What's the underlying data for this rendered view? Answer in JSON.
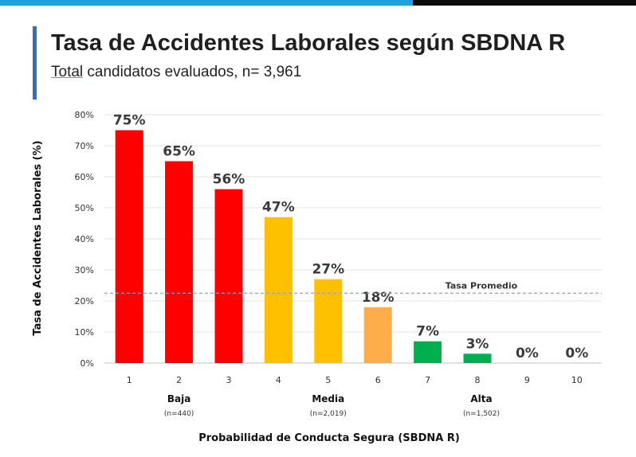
{
  "header": {
    "title": "Tasa de Accidentes Laborales según SBDNA R",
    "subtitle_prefix": "Total",
    "subtitle_rest": " candidatos evaluados, n= 3,961"
  },
  "colors": {
    "topbar_blue": "#1aa3dc",
    "topbar_dark": "#0c0c0c",
    "accent": "#3f6bb5",
    "baja": "#ff0000",
    "media": "#ffc000",
    "media_light": "#ffac4a",
    "alta": "#00b050",
    "average_line": "#8ea1c8"
  },
  "chart_data": {
    "type": "bar",
    "categories": [
      "1",
      "2",
      "3",
      "4",
      "5",
      "6",
      "7",
      "8",
      "9",
      "10"
    ],
    "values": [
      75,
      65,
      56,
      47,
      27,
      18,
      7,
      3,
      0,
      0
    ],
    "data_labels": [
      "75%",
      "65%",
      "56%",
      "47%",
      "27%",
      "18%",
      "7%",
      "3%",
      "0%",
      "0%"
    ],
    "bar_colors": [
      "#ff0000",
      "#ff0000",
      "#ff0000",
      "#ffc000",
      "#ffc000",
      "#ffac4a",
      "#00b050",
      "#00b050",
      "#00b050",
      "#00b050"
    ],
    "ylim": [
      0,
      80
    ],
    "yticks": [
      {
        "value": 0,
        "label": "0%"
      },
      {
        "value": 10,
        "label": "10%"
      },
      {
        "value": 20,
        "label": "20%"
      },
      {
        "value": 30,
        "label": "30%"
      },
      {
        "value": 40,
        "label": "40%"
      },
      {
        "value": 50,
        "label": "50%"
      },
      {
        "value": 60,
        "label": "60%"
      },
      {
        "value": 70,
        "label": "70%"
      },
      {
        "value": 80,
        "label": "80%"
      }
    ],
    "ylabel": "Tasa de Accidentes Laborales (%)",
    "xlabel": "Probabilidad de Conducta Segura (SBDNA R)",
    "average": {
      "value": 22.5,
      "label": "Tasa Promedio"
    },
    "groups": [
      {
        "name": "Baja",
        "n_label": "(n=440)",
        "categories": [
          "1",
          "2",
          "3"
        ]
      },
      {
        "name": "Media",
        "n_label": "(n=2,019)",
        "categories": [
          "4",
          "5",
          "6"
        ]
      },
      {
        "name": "Alta",
        "n_label": "(n=1,502)",
        "categories": [
          "7",
          "8",
          "9",
          "10"
        ]
      }
    ],
    "grid": true,
    "legend": "none"
  }
}
